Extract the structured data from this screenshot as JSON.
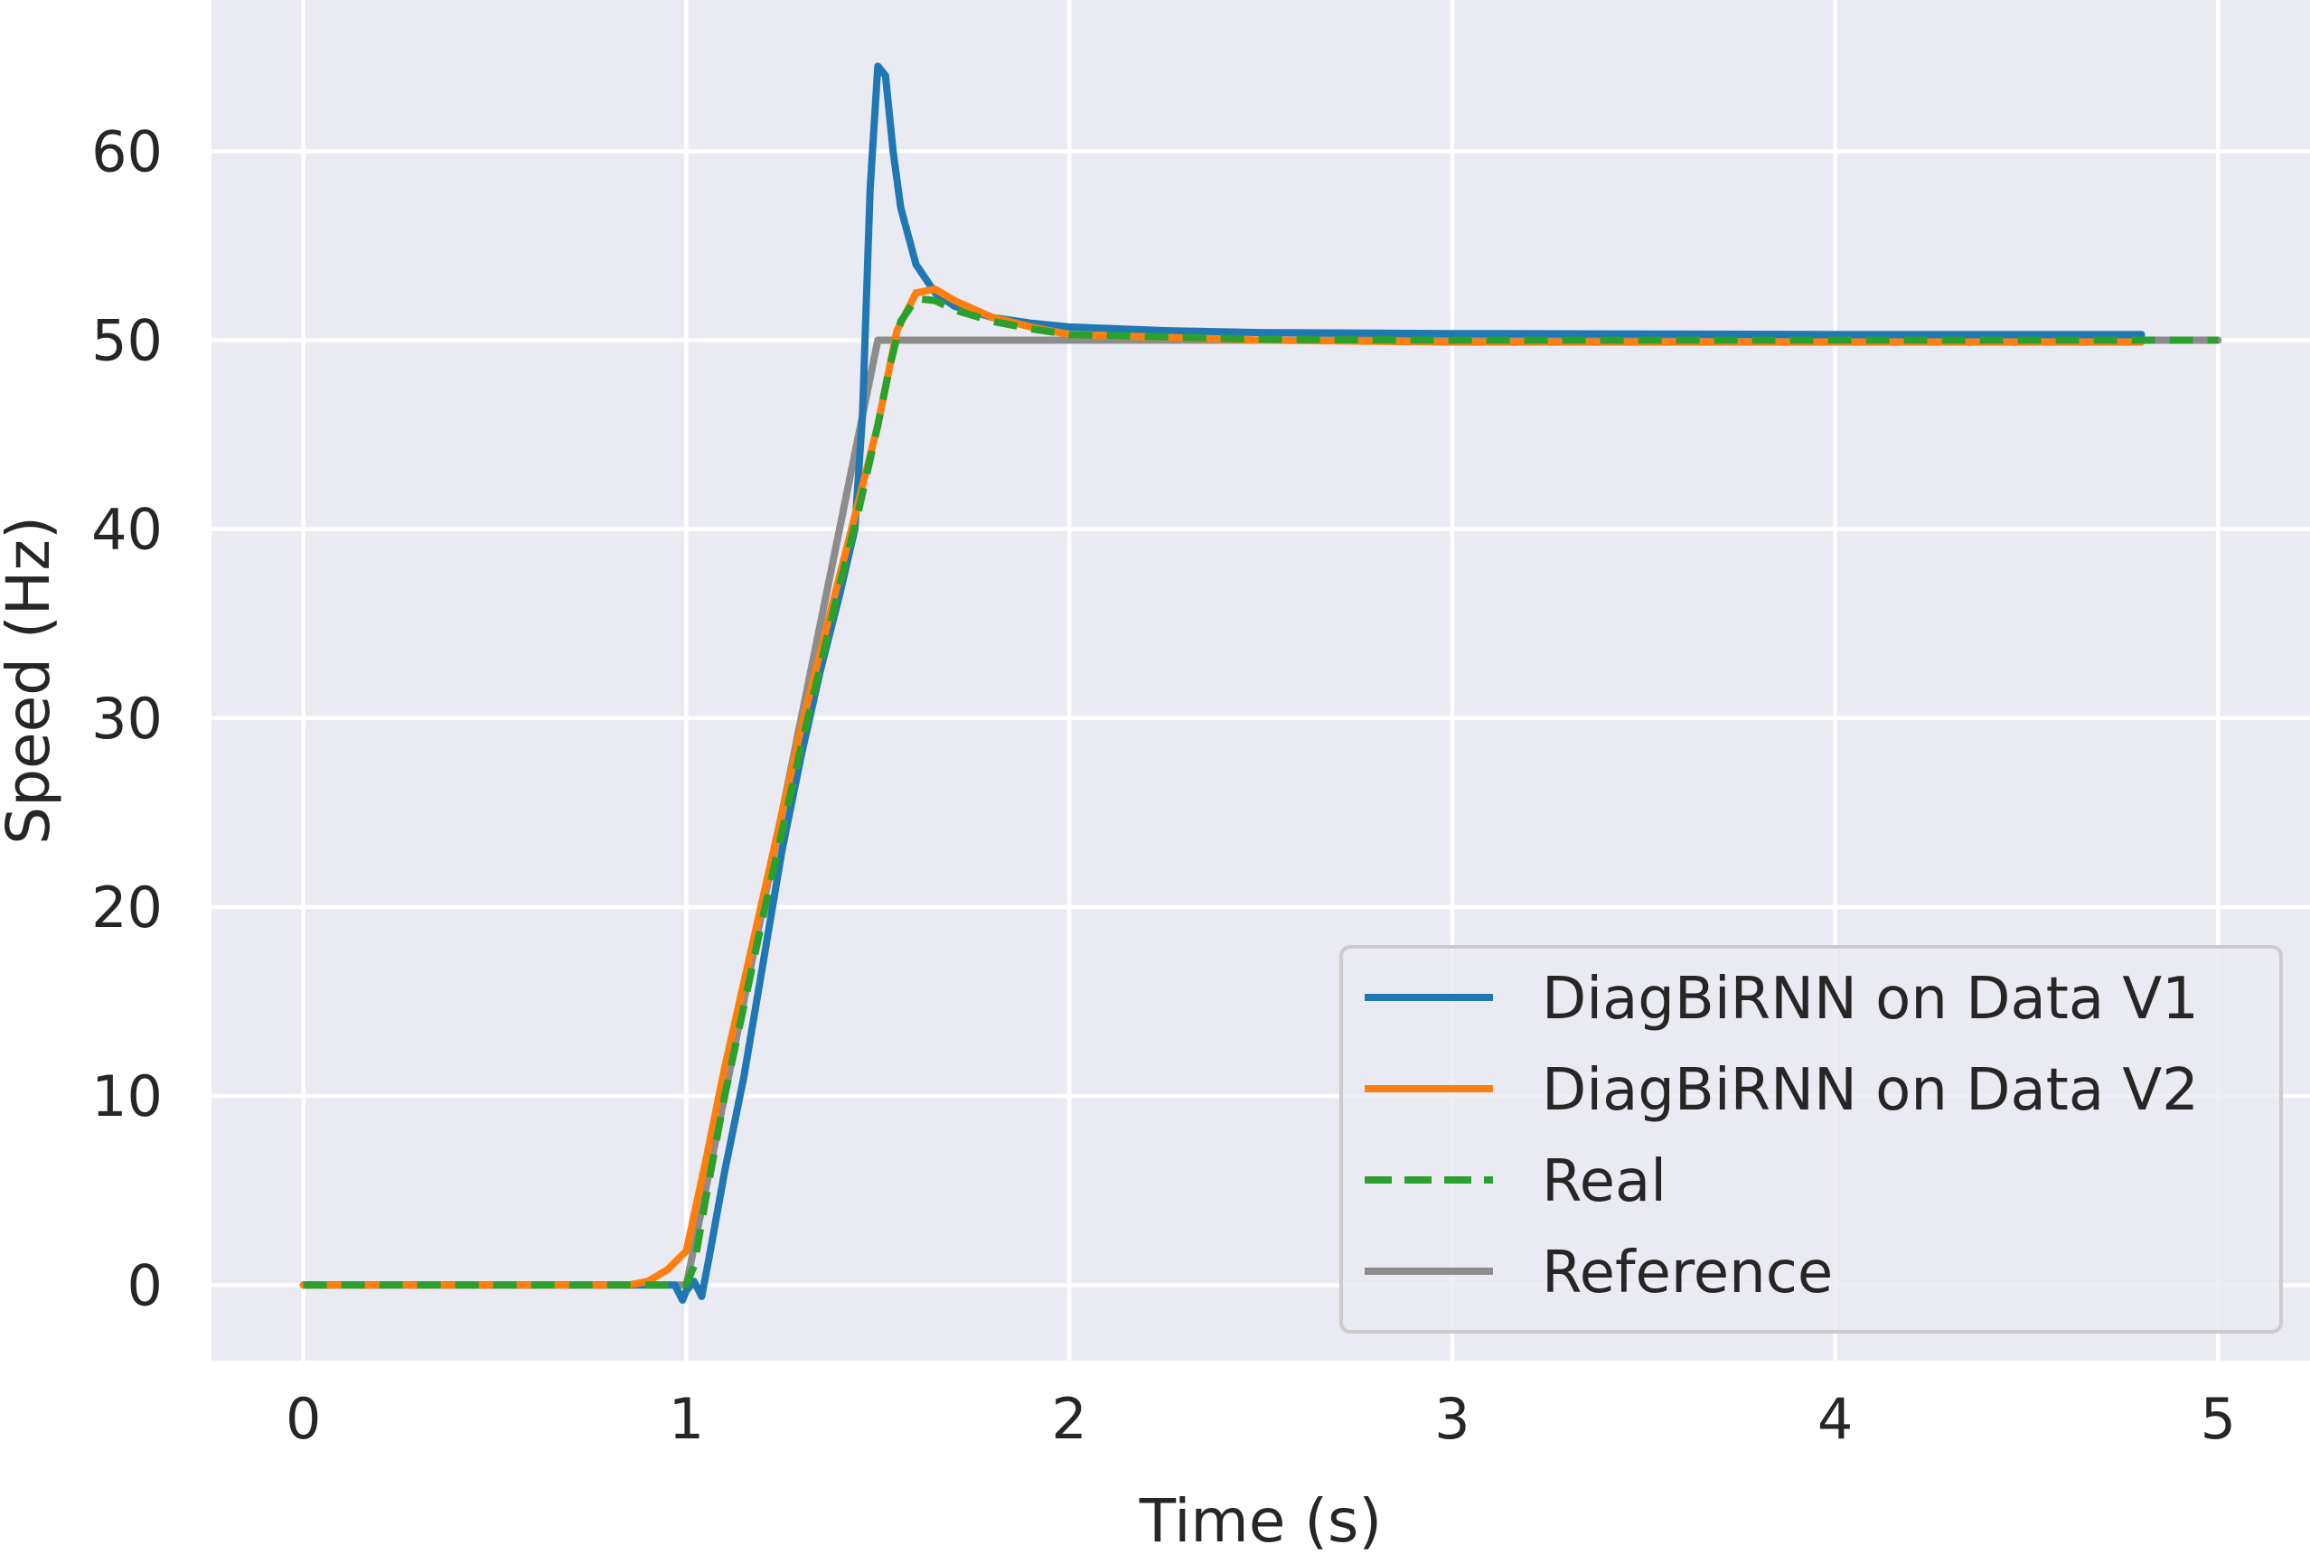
{
  "chart_data": {
    "type": "line",
    "title": "",
    "xlabel": "Time (s)",
    "ylabel": "Speed (Hz)",
    "xlim": [
      -0.24,
      5.24
    ],
    "ylim": [
      -4,
      68
    ],
    "xticks": [
      0,
      1,
      2,
      3,
      4,
      5
    ],
    "yticks": [
      0,
      10,
      20,
      30,
      40,
      50,
      60
    ],
    "grid": true,
    "legend_position": "lower-right",
    "background_color": "#EAEAF2",
    "series": [
      {
        "name": "Reference",
        "color": "#8c8c8c",
        "style": "solid",
        "points": [
          [
            0,
            0
          ],
          [
            1.0,
            0
          ],
          [
            1.5,
            50
          ],
          [
            5.0,
            50
          ]
        ]
      },
      {
        "name": "DiagBiRNN on Data V1",
        "color": "#1f77b4",
        "style": "solid",
        "points": [
          [
            0,
            0
          ],
          [
            0.9,
            0
          ],
          [
            0.97,
            0
          ],
          [
            0.99,
            -0.8
          ],
          [
            1.0,
            -0.3
          ],
          [
            1.02,
            0.2
          ],
          [
            1.04,
            -0.6
          ],
          [
            1.06,
            1.5
          ],
          [
            1.1,
            6
          ],
          [
            1.15,
            11
          ],
          [
            1.2,
            17
          ],
          [
            1.25,
            23
          ],
          [
            1.3,
            28
          ],
          [
            1.35,
            32.5
          ],
          [
            1.4,
            36.5
          ],
          [
            1.44,
            40
          ],
          [
            1.46,
            46
          ],
          [
            1.48,
            58
          ],
          [
            1.5,
            64.5
          ],
          [
            1.52,
            64
          ],
          [
            1.54,
            60
          ],
          [
            1.56,
            57
          ],
          [
            1.6,
            54
          ],
          [
            1.65,
            52.5
          ],
          [
            1.7,
            51.8
          ],
          [
            1.8,
            51.2
          ],
          [
            1.9,
            50.9
          ],
          [
            2.0,
            50.7
          ],
          [
            2.25,
            50.5
          ],
          [
            2.5,
            50.4
          ],
          [
            3.0,
            50.35
          ],
          [
            4.0,
            50.3
          ],
          [
            4.8,
            50.3
          ]
        ]
      },
      {
        "name": "DiagBiRNN on Data V2",
        "color": "#ff7f0e",
        "style": "solid",
        "points": [
          [
            0,
            0
          ],
          [
            0.85,
            0
          ],
          [
            0.9,
            0.2
          ],
          [
            0.95,
            0.8
          ],
          [
            1.0,
            1.8
          ],
          [
            1.05,
            6.5
          ],
          [
            1.1,
            11.5
          ],
          [
            1.2,
            20.5
          ],
          [
            1.3,
            29.5
          ],
          [
            1.4,
            37.5
          ],
          [
            1.45,
            41.5
          ],
          [
            1.5,
            45.5
          ],
          [
            1.55,
            50.5
          ],
          [
            1.6,
            52.5
          ],
          [
            1.65,
            52.7
          ],
          [
            1.7,
            52.1
          ],
          [
            1.8,
            51.2
          ],
          [
            1.9,
            50.7
          ],
          [
            2.0,
            50.3
          ],
          [
            2.5,
            50.0
          ],
          [
            3.0,
            49.9
          ],
          [
            4.0,
            49.9
          ],
          [
            4.8,
            49.9
          ]
        ]
      },
      {
        "name": "Real",
        "color": "#2ca02c",
        "style": "dashed",
        "points": [
          [
            0,
            0
          ],
          [
            0.9,
            0
          ],
          [
            1.0,
            0
          ],
          [
            1.02,
            1.0
          ],
          [
            1.05,
            4.5
          ],
          [
            1.1,
            10
          ],
          [
            1.2,
            19.5
          ],
          [
            1.3,
            28.5
          ],
          [
            1.4,
            37
          ],
          [
            1.45,
            41
          ],
          [
            1.5,
            45.5
          ],
          [
            1.53,
            48.5
          ],
          [
            1.56,
            51
          ],
          [
            1.6,
            52.2
          ],
          [
            1.65,
            52.1
          ],
          [
            1.7,
            51.6
          ],
          [
            1.8,
            51.0
          ],
          [
            1.9,
            50.6
          ],
          [
            2.0,
            50.3
          ],
          [
            2.5,
            50.05
          ],
          [
            3.0,
            50.0
          ],
          [
            4.0,
            50.0
          ],
          [
            5.0,
            50.0
          ]
        ]
      }
    ],
    "legend": [
      "DiagBiRNN on Data V1",
      "DiagBiRNN on Data V2",
      "Real",
      "Reference"
    ]
  }
}
